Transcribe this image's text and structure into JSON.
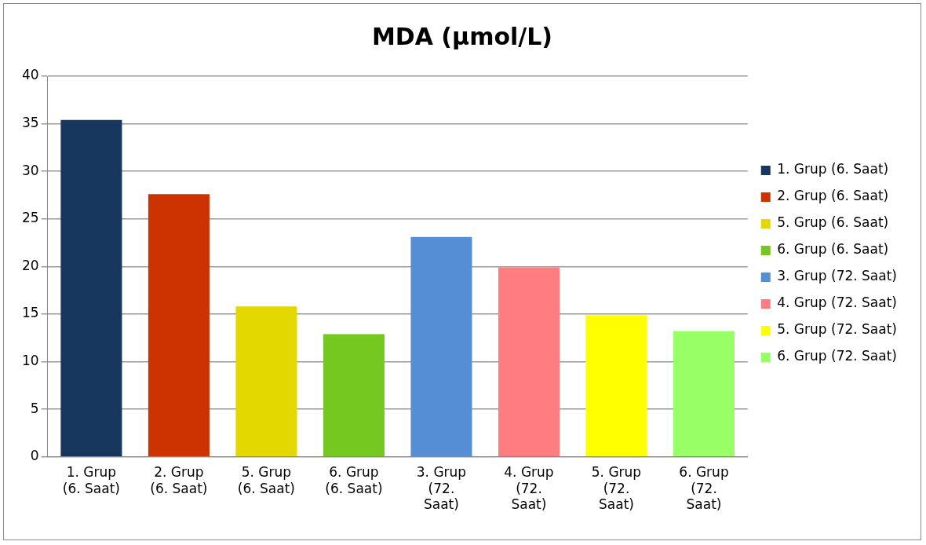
{
  "chart_data": {
    "type": "bar",
    "title": "MDA (µmol/L)",
    "categories": [
      "1. Grup (6. Saat)",
      "2. Grup (6. Saat)",
      "5. Grup (6. Saat)",
      "6. Grup (6. Saat)",
      "3. Grup (72. Saat)",
      "4. Grup (72. Saat)",
      "5. Grup (72. Saat)",
      "6. Grup (72. Saat)"
    ],
    "series": [
      {
        "name": "1. Grup (6. Saat)",
        "color": "#17375e",
        "values": [
          35.4,
          null,
          null,
          null,
          null,
          null,
          null,
          null
        ]
      },
      {
        "name": "2. Grup (6. Saat)",
        "color": "#cc3300",
        "values": [
          null,
          27.6,
          null,
          null,
          null,
          null,
          null,
          null
        ]
      },
      {
        "name": "5. Grup (6. Saat)",
        "color": "#e3d800",
        "values": [
          null,
          null,
          15.8,
          null,
          null,
          null,
          null,
          null
        ]
      },
      {
        "name": "6. Grup (6. Saat)",
        "color": "#74c820",
        "values": [
          null,
          null,
          null,
          12.9,
          null,
          null,
          null,
          null
        ]
      },
      {
        "name": "3. Grup (72. Saat)",
        "color": "#558ed5",
        "values": [
          null,
          null,
          null,
          null,
          23.1,
          null,
          null,
          null
        ]
      },
      {
        "name": "4. Grup (72. Saat)",
        "color": "#ff7c80",
        "values": [
          null,
          null,
          null,
          null,
          null,
          19.9,
          null,
          null
        ]
      },
      {
        "name": "5. Grup (72. Saat)",
        "color": "#ffff00",
        "values": [
          null,
          null,
          null,
          null,
          null,
          null,
          14.9,
          null
        ]
      },
      {
        "name": "6. Grup (72. Saat)",
        "color": "#99ff66",
        "values": [
          null,
          null,
          null,
          null,
          null,
          null,
          null,
          13.2
        ]
      }
    ],
    "ylim": [
      0,
      40
    ],
    "yticks": [
      0,
      5,
      10,
      15,
      20,
      25,
      30,
      35,
      40
    ],
    "grid": "y",
    "legend": "right"
  }
}
